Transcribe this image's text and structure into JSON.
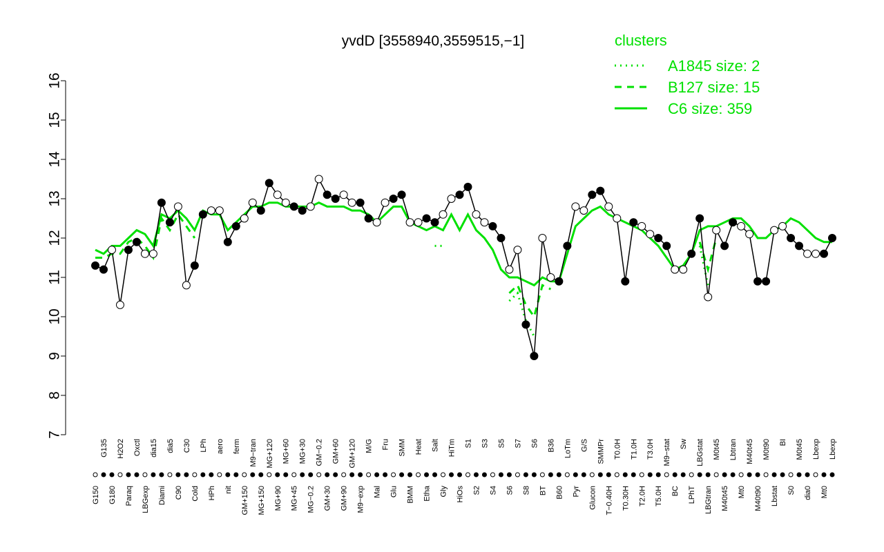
{
  "chart_data": {
    "type": "line",
    "title": "yvdD [3558940,3559515,−1]",
    "legend_title": "clusters",
    "legend_color": "#00e000",
    "categories": [
      "G150",
      "G135",
      "G180",
      "H2O2",
      "Paraq",
      "Oxctl",
      "LBGexp",
      "dia15",
      "Diami",
      "dia5",
      "C90",
      "C30",
      "Cold",
      "LPh",
      "HPh",
      "aero",
      "nit",
      "ferm",
      "GM+150",
      "M9−tran",
      "MG+150",
      "MG+120",
      "MG+90",
      "MG+60",
      "MG+45",
      "MG+30",
      "MG−0.2",
      "GM−0.2",
      "GM+30",
      "GM+60",
      "GM+90",
      "GM+120",
      "M9−exp",
      "M/G",
      "Mal",
      "Fru",
      "Glu",
      "SMM",
      "BMM",
      "Heat",
      "Etha",
      "Salt",
      "Gly",
      "HiTm",
      "HiOs",
      "S1",
      "S2",
      "S3",
      "S4",
      "S5",
      "S6",
      "S7",
      "S8",
      "S6",
      "BT",
      "B36",
      "B60",
      "LoTm",
      "Pyr",
      "G/S",
      "Glucon",
      "SMMPr",
      "T−0.40H",
      "T0.0H",
      "T0.30H",
      "T1.0H",
      "T2.0H",
      "T3.0H",
      "T5.0H",
      "M9−stat",
      "BC",
      "Sw",
      "LPhT",
      "LBGstat",
      "LBGtran",
      "M0t45",
      "M40t45",
      "Lbtran",
      "Mt0",
      "M40t45",
      "M40t90",
      "M0t90",
      "Lbstat",
      "BI",
      "S0",
      "M0t45",
      "dia0",
      "Lbexp",
      "Mt0",
      "Lbexp"
    ],
    "values": [
      11.3,
      11.2,
      11.7,
      10.3,
      11.7,
      11.9,
      11.6,
      11.6,
      12.9,
      12.4,
      12.8,
      10.8,
      11.3,
      12.6,
      12.7,
      12.7,
      11.9,
      12.3,
      12.5,
      12.9,
      12.7,
      13.4,
      13.1,
      12.9,
      12.8,
      12.7,
      12.8,
      13.5,
      13.1,
      13.0,
      13.1,
      12.9,
      12.9,
      12.5,
      12.4,
      12.9,
      13.0,
      13.1,
      12.4,
      12.4,
      12.5,
      12.4,
      12.6,
      13.0,
      13.1,
      13.3,
      12.6,
      12.4,
      12.3,
      12.0,
      11.2,
      11.7,
      9.8,
      9.0,
      12.0,
      11.0,
      10.9,
      11.8,
      12.8,
      12.7,
      13.1,
      13.2,
      12.8,
      12.5,
      10.9,
      12.4,
      12.3,
      12.1,
      12.0,
      11.8,
      11.2,
      11.2,
      11.6,
      12.5,
      10.5,
      12.2,
      11.8,
      12.4,
      12.3,
      12.1,
      10.9,
      10.9,
      12.2,
      12.3,
      12.0,
      11.8,
      11.6,
      11.6,
      11.6,
      12.0
    ],
    "color": "#000000",
    "series": [
      {
        "name": "A1845 size: 2",
        "color": "#00e000",
        "dash": "dotted",
        "values": [
          null,
          null,
          null,
          null,
          null,
          null,
          null,
          null,
          null,
          null,
          null,
          null,
          null,
          null,
          null,
          null,
          null,
          null,
          null,
          null,
          null,
          null,
          null,
          null,
          null,
          null,
          null,
          null,
          null,
          null,
          null,
          null,
          null,
          null,
          null,
          null,
          null,
          null,
          null,
          null,
          null,
          11.8,
          11.8,
          null,
          null,
          null,
          null,
          null,
          null,
          null,
          10.4,
          10.6,
          9.9,
          9.5,
          null,
          null,
          null,
          null,
          null,
          null,
          null,
          null,
          null,
          null,
          null,
          null,
          null,
          null,
          null,
          null,
          null,
          null,
          null,
          11.8,
          10.8,
          null,
          null,
          null,
          null,
          null,
          null,
          null,
          null,
          null,
          null,
          null,
          null,
          null,
          null,
          null
        ]
      },
      {
        "name": "B127 size: 15",
        "color": "#00e000",
        "dash": "dashed",
        "values": [
          11.5,
          11.5,
          11.6,
          11.6,
          11.9,
          12.0,
          11.8,
          11.5,
          12.5,
          12.2,
          12.6,
          12.3,
          12.0,
          null,
          null,
          null,
          null,
          null,
          null,
          null,
          null,
          null,
          null,
          null,
          null,
          null,
          null,
          null,
          null,
          null,
          null,
          null,
          null,
          null,
          null,
          null,
          null,
          null,
          null,
          null,
          null,
          null,
          null,
          null,
          null,
          null,
          null,
          null,
          null,
          null,
          10.6,
          10.8,
          10.3,
          10.0,
          10.8,
          10.7,
          null,
          null,
          null,
          null,
          null,
          null,
          null,
          null,
          null,
          null,
          null,
          null,
          null,
          null,
          null,
          null,
          null,
          11.9,
          11.2,
          12.0,
          null,
          null,
          null,
          null,
          null,
          null,
          null,
          null,
          null,
          null,
          null,
          null,
          null,
          null
        ]
      },
      {
        "name": "C6 size: 359",
        "color": "#00e000",
        "dash": "solid",
        "values": [
          11.7,
          11.6,
          11.8,
          11.8,
          12.0,
          12.2,
          12.1,
          11.8,
          12.6,
          12.5,
          12.7,
          12.5,
          12.2,
          12.7,
          12.6,
          12.6,
          12.2,
          12.4,
          12.6,
          12.8,
          12.8,
          12.9,
          12.9,
          12.8,
          12.8,
          12.8,
          12.8,
          12.9,
          12.8,
          12.8,
          12.8,
          12.7,
          12.7,
          12.6,
          12.4,
          12.6,
          12.8,
          12.8,
          12.4,
          12.3,
          12.2,
          12.3,
          12.2,
          12.6,
          12.2,
          12.6,
          12.2,
          12.0,
          11.7,
          11.2,
          11.0,
          11.0,
          10.9,
          10.8,
          11.0,
          10.9,
          10.9,
          11.6,
          12.3,
          12.5,
          12.7,
          12.8,
          12.6,
          12.5,
          12.4,
          12.3,
          12.2,
          12.0,
          11.8,
          11.5,
          11.2,
          11.3,
          11.6,
          12.2,
          12.3,
          12.3,
          12.4,
          12.5,
          12.5,
          12.3,
          12.0,
          12.0,
          12.2,
          12.3,
          12.5,
          12.4,
          12.2,
          12.0,
          11.9,
          11.9
        ]
      }
    ],
    "ylim": [
      7,
      16
    ],
    "yticks": [
      7,
      8,
      9,
      10,
      11,
      12,
      13,
      14,
      15,
      16
    ]
  }
}
